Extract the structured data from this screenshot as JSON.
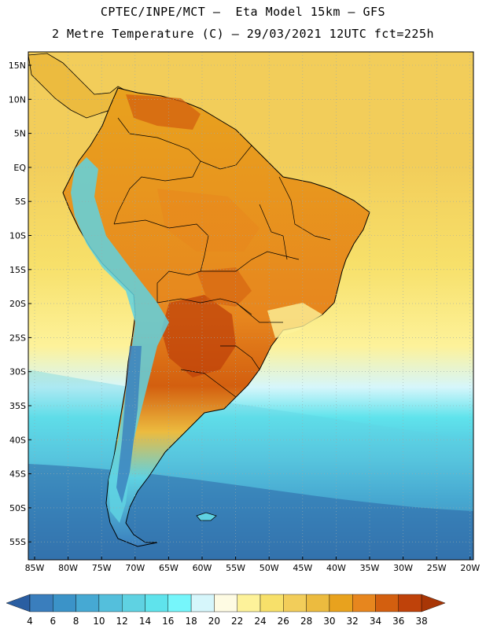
{
  "header": {
    "line1": "CPTEC/INPE/MCT –  Eta Model 15km – GFS",
    "line2": "2 Metre Temperature (C) – 29/03/2021 12UTC fct=225h"
  },
  "map": {
    "region": "South America",
    "lat_labels": [
      "15N",
      "10N",
      "5N",
      "EQ",
      "5S",
      "10S",
      "15S",
      "20S",
      "25S",
      "30S",
      "35S",
      "40S",
      "45S",
      "50S",
      "55S"
    ],
    "lon_labels": [
      "85W",
      "80W",
      "75W",
      "70W",
      "65W",
      "60W",
      "55W",
      "50W",
      "45W",
      "40W",
      "35W",
      "30W",
      "25W",
      "20W"
    ]
  },
  "colorbar": {
    "labels": [
      "4",
      "6",
      "8",
      "10",
      "12",
      "14",
      "16",
      "18",
      "20",
      "22",
      "24",
      "26",
      "28",
      "30",
      "32",
      "34",
      "36",
      "38"
    ],
    "colors": [
      "#2a5ea2",
      "#3a7ebd",
      "#3b93c8",
      "#46a9d3",
      "#54bfdc",
      "#5fd2e2",
      "#5fe3ec",
      "#76f6fb",
      "#d6f6fb",
      "#fefbe3",
      "#fdf29a",
      "#f7e06a",
      "#f2cd5a",
      "#ecbb3f",
      "#e8a21e",
      "#e7861e",
      "#d35f0f",
      "#bf420a",
      "#a83606"
    ]
  }
}
